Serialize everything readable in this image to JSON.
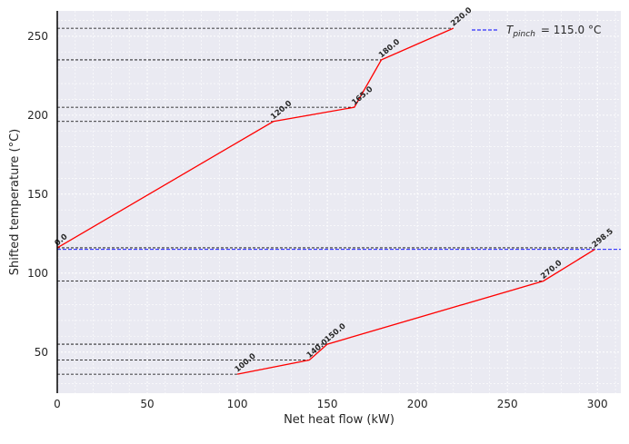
{
  "chart_data": {
    "type": "line",
    "title": "",
    "xlabel": "Net heat flow (kW)",
    "ylabel": "Shifted temperature (°C)",
    "xlim": [
      0,
      313
    ],
    "ylim": [
      24,
      266
    ],
    "x_ticks": [
      0,
      50,
      100,
      150,
      200,
      250,
      300
    ],
    "y_ticks": [
      50,
      100,
      150,
      200,
      250
    ],
    "grid": true,
    "legend_position": "top-right",
    "pinch": {
      "temperature": 115,
      "legend_label": "= 115.0 °C",
      "legend_symbol_main": "T",
      "legend_symbol_sub": "pinch",
      "color": "#0000ff"
    },
    "curve_color": "#ff0000",
    "series": [
      {
        "points": [
          {
            "x": 0.0,
            "y": 116,
            "label": "0.0"
          },
          {
            "x": 120.0,
            "y": 196,
            "label": "120.0"
          },
          {
            "x": 165.0,
            "y": 205,
            "label": "165.0"
          },
          {
            "x": 180.0,
            "y": 235,
            "label": "180.0"
          },
          {
            "x": 220.0,
            "y": 255,
            "label": "220.0"
          }
        ]
      },
      {
        "points": [
          {
            "x": 100.0,
            "y": 36,
            "label": "100.0"
          },
          {
            "x": 140.0,
            "y": 45,
            "label": "140.0"
          },
          {
            "x": 150.0,
            "y": 55,
            "label": "150.0"
          },
          {
            "x": 270.0,
            "y": 95,
            "label": "270.0"
          },
          {
            "x": 298.5,
            "y": 115,
            "label": "298.5"
          }
        ]
      }
    ],
    "level_lines": [
      {
        "y": 255,
        "x_end": 220
      },
      {
        "y": 235,
        "x_end": 180
      },
      {
        "y": 205,
        "x_end": 165
      },
      {
        "y": 196,
        "x_end": 120
      },
      {
        "y": 116,
        "x_end": 298.5
      },
      {
        "y": 95,
        "x_end": 270
      },
      {
        "y": 55,
        "x_end": 150
      },
      {
        "y": 45,
        "x_end": 140
      },
      {
        "y": 36,
        "x_end": 100
      }
    ]
  }
}
